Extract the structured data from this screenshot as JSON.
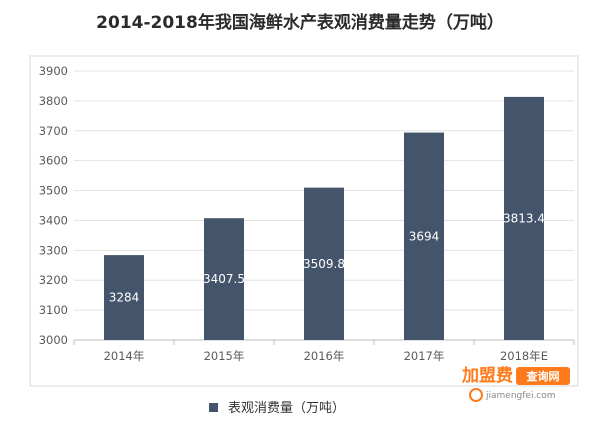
{
  "chart_data": {
    "type": "bar",
    "title": "2014-2018年我国海鲜水产表观消费量走势（万吨）",
    "categories": [
      "2014年",
      "2015年",
      "2016年",
      "2017年",
      "2018年E"
    ],
    "series": [
      {
        "name": "表观消费量（万吨）",
        "values": [
          3284,
          3407.5,
          3509.8,
          3694,
          3813.4
        ],
        "labels": [
          "3284",
          "3407.5",
          "3509.8",
          "3694",
          "3813.4"
        ],
        "color": "#44546a"
      }
    ],
    "ylim": [
      3000,
      3900
    ],
    "yticks": [
      "3000",
      "3100",
      "3200",
      "3300",
      "3400",
      "3500",
      "3600",
      "3700",
      "3800",
      "3900"
    ],
    "grid": true,
    "legend_position": "bottom"
  },
  "watermark": {
    "brand": "加盟费",
    "tag": "查询网",
    "url": "jiamengfei.com",
    "colors": {
      "brand": "#ff7a1a",
      "tag_bg": "#ff7a1a"
    }
  }
}
